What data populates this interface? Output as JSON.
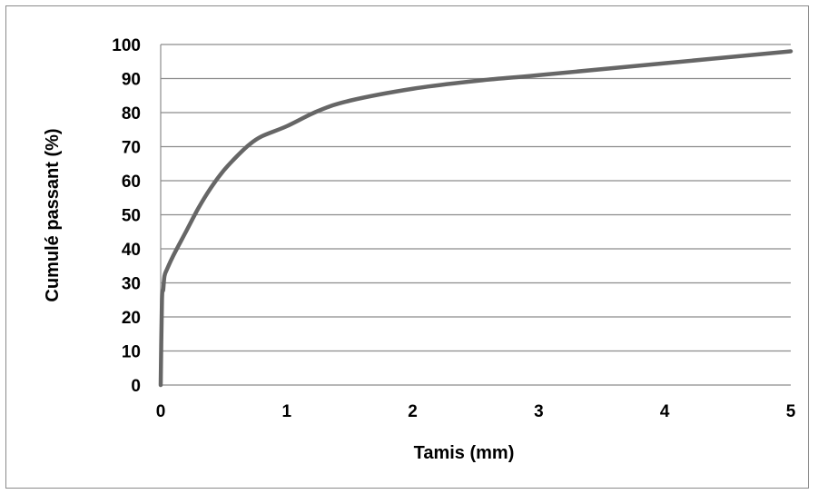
{
  "chart_data": {
    "type": "line",
    "xlabel": "Tamis (mm)",
    "ylabel": "Cumulé passant (%)",
    "xlim": [
      0,
      5
    ],
    "ylim": [
      0,
      100
    ],
    "x_ticks": [
      "0",
      "1",
      "2",
      "3",
      "4",
      "5"
    ],
    "y_ticks": [
      "0",
      "10",
      "20",
      "30",
      "40",
      "50",
      "60",
      "70",
      "80",
      "90",
      "100"
    ],
    "grid": "horizontal",
    "legend": "none",
    "line_color": "#666666",
    "series": [
      {
        "x": [
          0,
          0.01,
          0.02,
          0.03,
          0.05,
          0.1,
          0.2,
          0.3,
          0.4,
          0.5,
          0.6,
          0.7,
          0.8,
          1.0,
          1.25,
          1.5,
          2.0,
          2.5,
          3.0,
          4.0,
          5.0
        ],
        "y": [
          0,
          25,
          28,
          32,
          34,
          38,
          45,
          52,
          58,
          63,
          67,
          70.5,
          73,
          76,
          80.5,
          83.5,
          87,
          89.3,
          91,
          94.5,
          98
        ]
      }
    ]
  }
}
